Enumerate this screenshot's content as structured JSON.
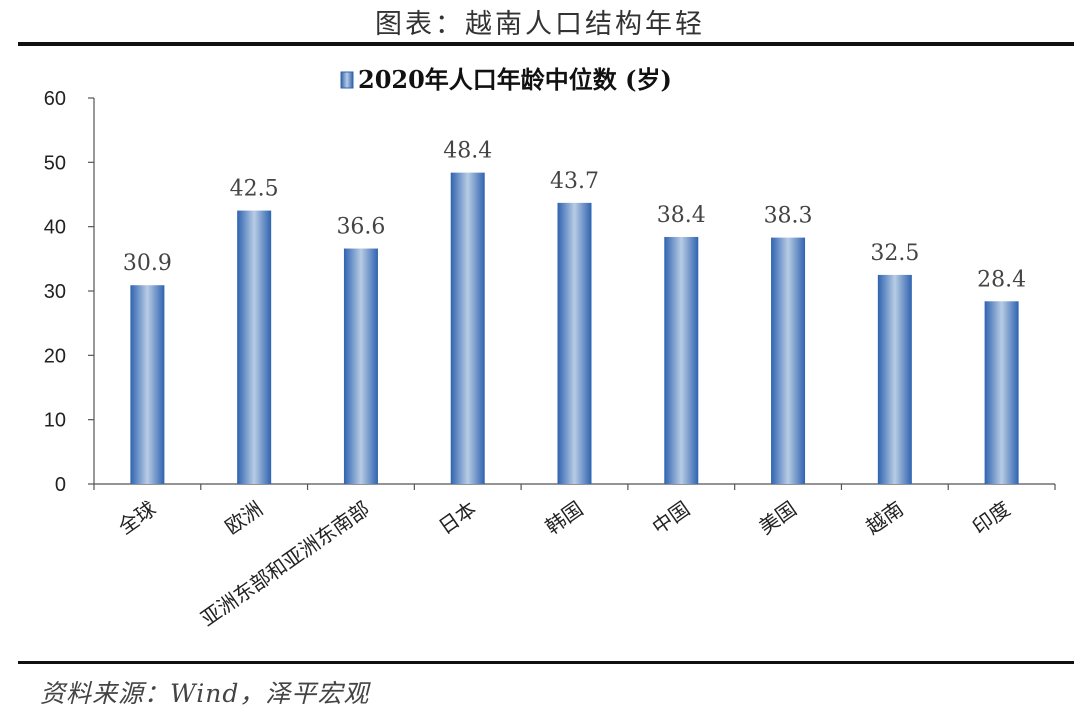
{
  "page": {
    "title": "图表：越南人口结构年轻",
    "source": "资料来源：Wind，泽平宏观"
  },
  "chart_data": {
    "type": "bar",
    "title": "",
    "categories": [
      "全球",
      "欧洲",
      "亚洲东部和亚洲东南部",
      "日本",
      "韩国",
      "中国",
      "美国",
      "越南",
      "印度"
    ],
    "series": [
      {
        "name": "2020年人口年龄中位数 (岁)",
        "values": [
          30.9,
          42.5,
          36.6,
          48.4,
          43.7,
          38.4,
          38.3,
          32.5,
          28.4
        ]
      }
    ],
    "value_labels": [
      "30.9",
      "42.5",
      "36.6",
      "48.4",
      "43.7",
      "38.4",
      "38.3",
      "32.5",
      "28.4"
    ],
    "yticks": [
      "0",
      "10",
      "20",
      "30",
      "40",
      "50",
      "60"
    ],
    "ylim": [
      0,
      60
    ],
    "xlabel": "",
    "ylabel": "",
    "grid": false,
    "legend_position": "top",
    "colors": {
      "bar_edge": "#2f63b0",
      "bar_center": "#b8cce4"
    }
  }
}
